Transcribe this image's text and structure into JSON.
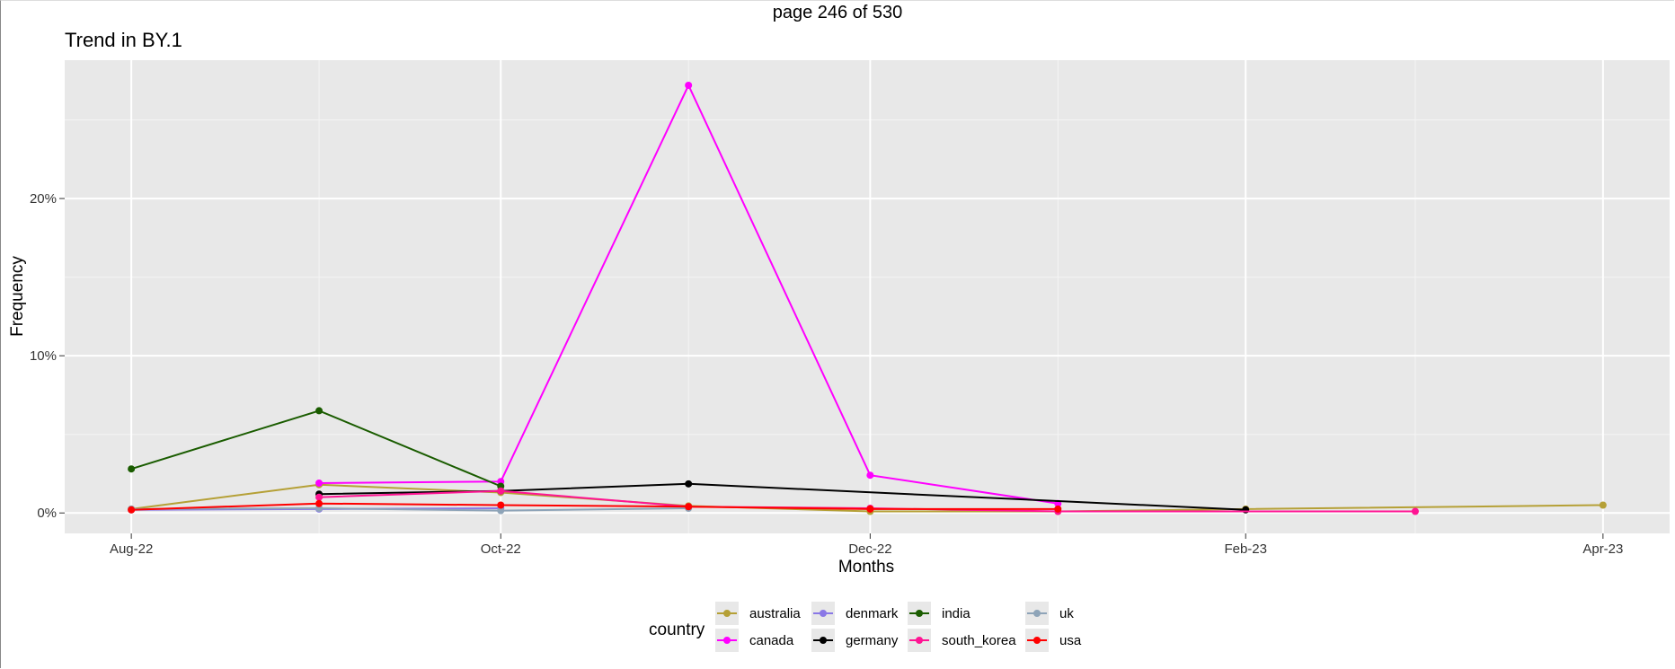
{
  "page_label": "page 246 of 530",
  "chart_data": {
    "type": "line",
    "title": "Trend in BY.1",
    "xlabel": "Months",
    "ylabel": "Frequency",
    "x_ticks": [
      "Aug-22",
      "Oct-22",
      "Dec-22",
      "Feb-23",
      "Apr-23"
    ],
    "y_ticks": [
      "0%",
      "10%",
      "20%"
    ],
    "ylim": [
      -1.3,
      28.8
    ],
    "xlim": [
      "2022-07-21",
      "2023-04-12"
    ],
    "grid": true,
    "legend_title": "country",
    "legend_position": "bottom",
    "series": [
      {
        "name": "australia",
        "color": "#b5a036",
        "points": [
          [
            "2022-08-01",
            0.25
          ],
          [
            "2022-09-01",
            1.8
          ],
          [
            "2022-10-01",
            1.3
          ],
          [
            "2022-11-01",
            0.45
          ],
          [
            "2022-12-01",
            0.1
          ],
          [
            "2023-01-01",
            0.1
          ],
          [
            "2023-02-01",
            0.25
          ],
          [
            "2023-04-01",
            0.5
          ]
        ]
      },
      {
        "name": "canada",
        "color": "#ff00ff",
        "points": [
          [
            "2022-09-01",
            1.9
          ],
          [
            "2022-10-01",
            2.0
          ],
          [
            "2022-11-01",
            27.2
          ],
          [
            "2022-12-01",
            2.4
          ],
          [
            "2023-01-01",
            0.6
          ]
        ]
      },
      {
        "name": "denmark",
        "color": "#8a78e6",
        "points": [
          [
            "2022-08-01",
            0.2
          ],
          [
            "2022-09-01",
            0.25
          ],
          [
            "2022-10-01",
            0.3
          ]
        ]
      },
      {
        "name": "germany",
        "color": "#000000",
        "points": [
          [
            "2022-09-01",
            1.2
          ],
          [
            "2022-10-01",
            1.4
          ],
          [
            "2022-11-01",
            1.85
          ],
          [
            "2023-02-01",
            0.2
          ]
        ]
      },
      {
        "name": "india",
        "color": "#1a5c00",
        "points": [
          [
            "2022-08-01",
            2.8
          ],
          [
            "2022-09-01",
            6.5
          ],
          [
            "2022-10-01",
            1.7
          ]
        ]
      },
      {
        "name": "south_korea",
        "color": "#ff1493",
        "points": [
          [
            "2022-09-01",
            1.0
          ],
          [
            "2022-10-01",
            1.4
          ],
          [
            "2022-11-01",
            0.4
          ],
          [
            "2022-12-01",
            0.3
          ],
          [
            "2023-01-01",
            0.1
          ],
          [
            "2023-03-01",
            0.1
          ]
        ]
      },
      {
        "name": "uk",
        "color": "#8ea4b8",
        "points": [
          [
            "2022-08-01",
            0.25
          ],
          [
            "2022-09-01",
            0.3
          ],
          [
            "2022-10-01",
            0.15
          ],
          [
            "2022-11-01",
            0.3
          ]
        ]
      },
      {
        "name": "usa",
        "color": "#ff0000",
        "points": [
          [
            "2022-08-01",
            0.2
          ],
          [
            "2022-09-01",
            0.6
          ],
          [
            "2022-10-01",
            0.5
          ],
          [
            "2022-11-01",
            0.4
          ],
          [
            "2022-12-01",
            0.25
          ],
          [
            "2023-01-01",
            0.25
          ]
        ]
      }
    ]
  }
}
